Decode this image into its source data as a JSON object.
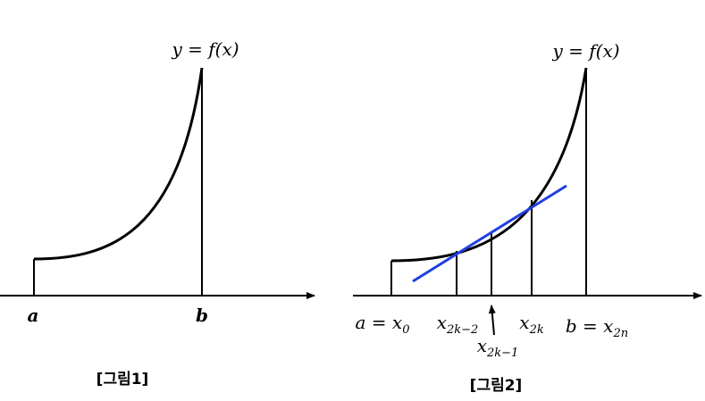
{
  "figure1": {
    "curve_label": "y = f(x)",
    "a": "a",
    "b": "b",
    "caption": "[그림1]"
  },
  "figure2": {
    "curve_label": "y = f(x)",
    "labels": [
      {
        "base": "a = x",
        "sub": "0"
      },
      {
        "base": "x",
        "sub": "2k−2"
      },
      {
        "base": "x",
        "sub": "2k−1"
      },
      {
        "base": "x",
        "sub": "2k"
      },
      {
        "base": "b = x",
        "sub": "2n"
      }
    ],
    "caption": "[그림2]"
  }
}
